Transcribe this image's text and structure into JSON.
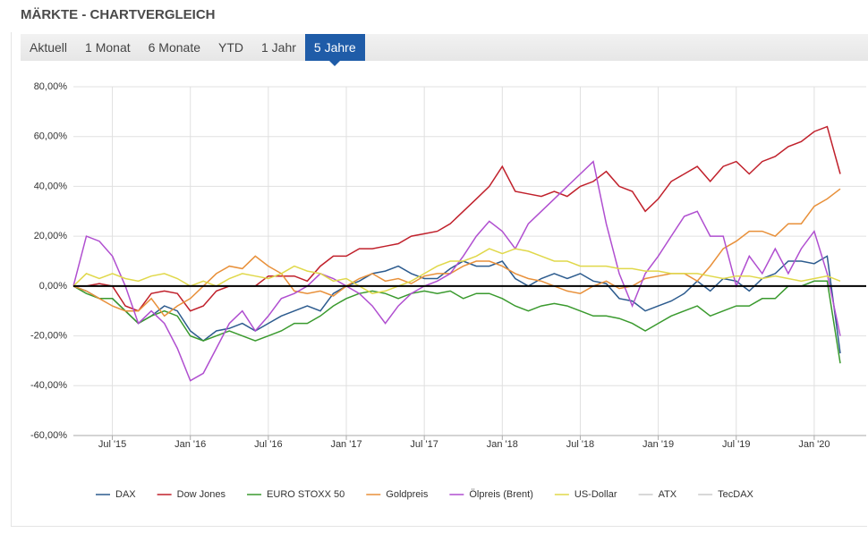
{
  "header": {
    "title": "MÄRKTE - CHARTVERGLEICH"
  },
  "tabs": [
    "Aktuell",
    "1 Monat",
    "6 Monate",
    "YTD",
    "1 Jahr",
    "5 Jahre"
  ],
  "active_tab": 5,
  "chart_data": {
    "type": "line",
    "x": [
      "2015-04",
      "2015-05",
      "2015-06",
      "2015-07",
      "2015-08",
      "2015-09",
      "2015-10",
      "2015-11",
      "2015-12",
      "2016-01",
      "2016-02",
      "2016-03",
      "2016-04",
      "2016-05",
      "2016-06",
      "2016-07",
      "2016-08",
      "2016-09",
      "2016-10",
      "2016-11",
      "2016-12",
      "2017-01",
      "2017-02",
      "2017-03",
      "2017-04",
      "2017-05",
      "2017-06",
      "2017-07",
      "2017-08",
      "2017-09",
      "2017-10",
      "2017-11",
      "2017-12",
      "2018-01",
      "2018-02",
      "2018-03",
      "2018-04",
      "2018-05",
      "2018-06",
      "2018-07",
      "2018-08",
      "2018-09",
      "2018-10",
      "2018-11",
      "2018-12",
      "2019-01",
      "2019-02",
      "2019-03",
      "2019-04",
      "2019-05",
      "2019-06",
      "2019-07",
      "2019-08",
      "2019-09",
      "2019-10",
      "2019-11",
      "2019-12",
      "2020-01",
      "2020-02",
      "2020-03"
    ],
    "series": [
      {
        "name": "DAX",
        "color": "#2c5b8e",
        "values": [
          0,
          -2,
          -5,
          -5,
          -10,
          -15,
          -12,
          -8,
          -10,
          -18,
          -22,
          -18,
          -17,
          -15,
          -18,
          -15,
          -12,
          -10,
          -8,
          -10,
          -3,
          0,
          2,
          5,
          6,
          8,
          5,
          3,
          3,
          7,
          10,
          8,
          8,
          10,
          3,
          0,
          3,
          5,
          3,
          5,
          2,
          1,
          -5,
          -6,
          -10,
          -8,
          -6,
          -3,
          2,
          -2,
          3,
          2,
          -2,
          3,
          5,
          10,
          10,
          9,
          12,
          -27
        ]
      },
      {
        "name": "Dow Jones",
        "color": "#c0202b",
        "values": [
          0,
          0,
          1,
          0,
          -8,
          -10,
          -3,
          -2,
          -3,
          -10,
          -8,
          -2,
          0,
          0,
          0,
          4,
          4,
          4,
          2,
          8,
          12,
          12,
          15,
          15,
          16,
          17,
          20,
          21,
          22,
          25,
          30,
          35,
          40,
          48,
          38,
          37,
          36,
          38,
          36,
          40,
          42,
          46,
          40,
          38,
          30,
          35,
          42,
          45,
          48,
          42,
          48,
          50,
          45,
          50,
          52,
          56,
          58,
          62,
          64,
          45
        ]
      },
      {
        "name": "EURO STOXX 50",
        "color": "#3a9a2e",
        "values": [
          0,
          -3,
          -5,
          -5,
          -10,
          -15,
          -12,
          -10,
          -12,
          -20,
          -22,
          -20,
          -18,
          -20,
          -22,
          -20,
          -18,
          -15,
          -15,
          -12,
          -8,
          -5,
          -3,
          -2,
          -3,
          -5,
          -3,
          -2,
          -3,
          -2,
          -5,
          -3,
          -3,
          -5,
          -8,
          -10,
          -8,
          -7,
          -8,
          -10,
          -12,
          -12,
          -13,
          -15,
          -18,
          -15,
          -12,
          -10,
          -8,
          -12,
          -10,
          -8,
          -8,
          -5,
          -5,
          0,
          0,
          2,
          2,
          -31
        ]
      },
      {
        "name": "Goldpreis",
        "color": "#e8903a",
        "values": [
          0,
          -2,
          -5,
          -8,
          -10,
          -10,
          -5,
          -12,
          -8,
          -5,
          0,
          5,
          8,
          7,
          12,
          8,
          5,
          -2,
          -3,
          -2,
          -4,
          0,
          3,
          5,
          2,
          3,
          1,
          4,
          5,
          5,
          8,
          10,
          10,
          8,
          5,
          3,
          2,
          0,
          -2,
          -3,
          0,
          2,
          -1,
          0,
          3,
          4,
          5,
          5,
          2,
          8,
          15,
          18,
          22,
          22,
          20,
          25,
          25,
          32,
          35,
          39
        ]
      },
      {
        "name": "Ölpreis (Brent)",
        "color": "#b04fd0",
        "values": [
          0,
          20,
          18,
          12,
          0,
          -15,
          -10,
          -15,
          -25,
          -38,
          -35,
          -25,
          -15,
          -10,
          -18,
          -12,
          -5,
          -3,
          0,
          5,
          3,
          0,
          -3,
          -8,
          -15,
          -8,
          -3,
          0,
          2,
          5,
          12,
          20,
          26,
          22,
          15,
          25,
          30,
          35,
          40,
          45,
          50,
          25,
          5,
          -8,
          5,
          12,
          20,
          28,
          30,
          20,
          20,
          0,
          12,
          5,
          15,
          5,
          15,
          22,
          5,
          -20
        ]
      },
      {
        "name": "US-Dollar",
        "color": "#e0d84a",
        "values": [
          0,
          5,
          3,
          5,
          3,
          2,
          4,
          5,
          3,
          0,
          2,
          0,
          3,
          5,
          4,
          3,
          5,
          8,
          6,
          5,
          2,
          3,
          0,
          -3,
          -2,
          0,
          2,
          5,
          8,
          10,
          10,
          12,
          15,
          13,
          15,
          14,
          12,
          10,
          10,
          8,
          8,
          8,
          7,
          7,
          6,
          6,
          5,
          5,
          5,
          4,
          3,
          4,
          4,
          3,
          4,
          3,
          2,
          3,
          4,
          2
        ]
      }
    ],
    "hidden_series": [
      {
        "name": "ATX",
        "color": "#cccccc"
      },
      {
        "name": "TecDAX",
        "color": "#cccccc"
      }
    ],
    "xlim": [
      "2015-04",
      "2020-05"
    ],
    "xticks": [
      {
        "value": "2015-07",
        "label": "Jul '15"
      },
      {
        "value": "2016-01",
        "label": "Jan '16"
      },
      {
        "value": "2016-07",
        "label": "Jul '16"
      },
      {
        "value": "2017-01",
        "label": "Jan '17"
      },
      {
        "value": "2017-07",
        "label": "Jul '17"
      },
      {
        "value": "2018-01",
        "label": "Jan '18"
      },
      {
        "value": "2018-07",
        "label": "Jul '18"
      },
      {
        "value": "2019-01",
        "label": "Jan '19"
      },
      {
        "value": "2019-07",
        "label": "Jul '19"
      },
      {
        "value": "2020-01",
        "label": "Jan '20"
      }
    ],
    "ylim": [
      -60,
      80
    ],
    "yticks": [
      {
        "value": -60,
        "label": "-60,00%"
      },
      {
        "value": -40,
        "label": "-40,00%"
      },
      {
        "value": -20,
        "label": "-20,00%"
      },
      {
        "value": 0,
        "label": "0,00%"
      },
      {
        "value": 20,
        "label": "20,00%"
      },
      {
        "value": 40,
        "label": "40,00%"
      },
      {
        "value": 60,
        "label": "60,00%"
      },
      {
        "value": 80,
        "label": "80,00%"
      }
    ],
    "grid": true
  }
}
